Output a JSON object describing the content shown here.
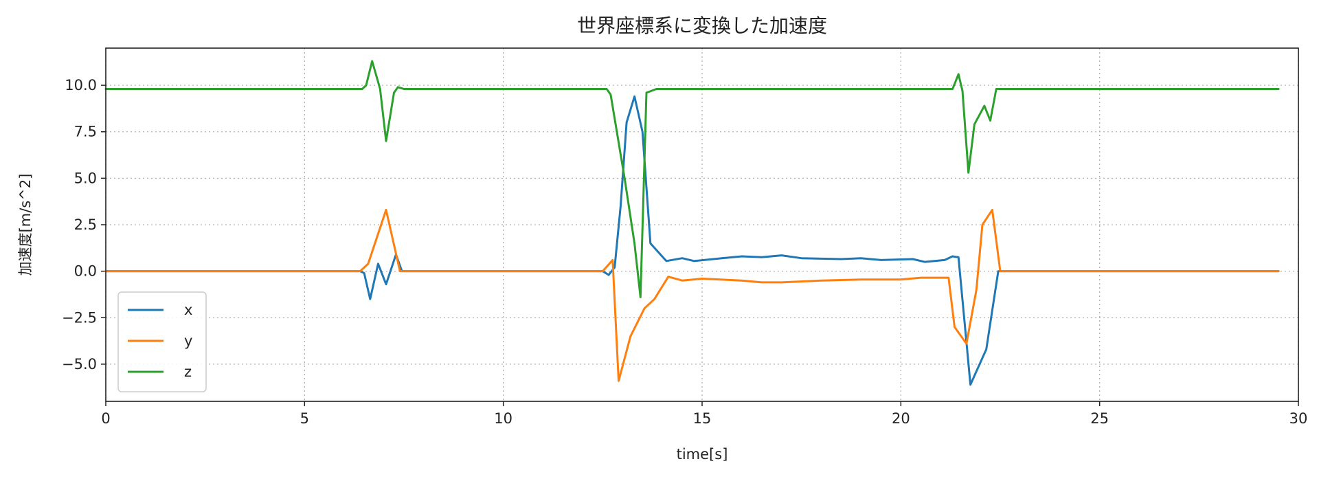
{
  "chart_data": {
    "type": "line",
    "title": "世界座標系に変換した加速度",
    "xlabel": "time[s]",
    "ylabel": "加速度[m/s^2]",
    "xlim": [
      0,
      30
    ],
    "ylim": [
      -7,
      12
    ],
    "xticks": [
      0,
      5,
      10,
      15,
      20,
      25,
      30
    ],
    "xtick_labels": [
      "0",
      "5",
      "10",
      "15",
      "20",
      "25",
      "30"
    ],
    "yticks": [
      -5,
      -2.5,
      0,
      2.5,
      5,
      7.5,
      10
    ],
    "ytick_labels": [
      "−5.0",
      "−2.5",
      "0.0",
      "2.5",
      "5.0",
      "7.5",
      "10.0"
    ],
    "grid": true,
    "legend_position": "lower-left",
    "series": [
      {
        "name": "x",
        "color": "#1f77b4",
        "points": [
          [
            0,
            0
          ],
          [
            6.4,
            0
          ],
          [
            6.5,
            -0.1
          ],
          [
            6.65,
            -1.5
          ],
          [
            6.85,
            0.4
          ],
          [
            7.05,
            -0.7
          ],
          [
            7.3,
            0.9
          ],
          [
            7.45,
            0
          ],
          [
            12.5,
            0
          ],
          [
            12.65,
            -0.2
          ],
          [
            12.8,
            0.2
          ],
          [
            12.95,
            3.5
          ],
          [
            13.1,
            8.0
          ],
          [
            13.3,
            9.4
          ],
          [
            13.5,
            7.5
          ],
          [
            13.7,
            1.5
          ],
          [
            14.1,
            0.55
          ],
          [
            14.5,
            0.7
          ],
          [
            14.8,
            0.55
          ],
          [
            15.5,
            0.7
          ],
          [
            16,
            0.8
          ],
          [
            16.5,
            0.75
          ],
          [
            17,
            0.85
          ],
          [
            17.5,
            0.7
          ],
          [
            18.5,
            0.65
          ],
          [
            19,
            0.7
          ],
          [
            19.5,
            0.6
          ],
          [
            20.3,
            0.65
          ],
          [
            20.6,
            0.5
          ],
          [
            21.1,
            0.6
          ],
          [
            21.3,
            0.8
          ],
          [
            21.45,
            0.75
          ],
          [
            21.75,
            -6.1
          ],
          [
            22.15,
            -4.2
          ],
          [
            22.45,
            0
          ],
          [
            29.5,
            0
          ]
        ]
      },
      {
        "name": "y",
        "color": "#ff7f0e",
        "points": [
          [
            0,
            0
          ],
          [
            6.4,
            0
          ],
          [
            6.6,
            0.4
          ],
          [
            7.05,
            3.3
          ],
          [
            7.4,
            0
          ],
          [
            12.5,
            0
          ],
          [
            12.75,
            0.6
          ],
          [
            12.9,
            -5.9
          ],
          [
            13.2,
            -3.5
          ],
          [
            13.55,
            -2.0
          ],
          [
            13.8,
            -1.5
          ],
          [
            14.15,
            -0.3
          ],
          [
            14.5,
            -0.5
          ],
          [
            15,
            -0.4
          ],
          [
            16,
            -0.5
          ],
          [
            16.5,
            -0.6
          ],
          [
            17,
            -0.6
          ],
          [
            18,
            -0.5
          ],
          [
            19,
            -0.45
          ],
          [
            20,
            -0.45
          ],
          [
            20.5,
            -0.35
          ],
          [
            21.2,
            -0.35
          ],
          [
            21.35,
            -3.0
          ],
          [
            21.65,
            -3.9
          ],
          [
            21.9,
            -1.0
          ],
          [
            22.05,
            2.5
          ],
          [
            22.3,
            3.3
          ],
          [
            22.5,
            0
          ],
          [
            29.5,
            0
          ]
        ]
      },
      {
        "name": "z",
        "color": "#2ca02c",
        "points": [
          [
            0,
            9.8
          ],
          [
            6.45,
            9.8
          ],
          [
            6.55,
            10.0
          ],
          [
            6.7,
            11.3
          ],
          [
            6.9,
            9.8
          ],
          [
            7.05,
            7.0
          ],
          [
            7.25,
            9.6
          ],
          [
            7.35,
            9.9
          ],
          [
            7.5,
            9.8
          ],
          [
            12.6,
            9.8
          ],
          [
            12.7,
            9.5
          ],
          [
            13.05,
            5.0
          ],
          [
            13.3,
            1.5
          ],
          [
            13.45,
            -1.4
          ],
          [
            13.6,
            9.6
          ],
          [
            13.85,
            9.8
          ],
          [
            21.3,
            9.8
          ],
          [
            21.45,
            10.6
          ],
          [
            21.55,
            9.7
          ],
          [
            21.7,
            5.3
          ],
          [
            21.85,
            7.9
          ],
          [
            22.1,
            8.9
          ],
          [
            22.25,
            8.1
          ],
          [
            22.4,
            9.8
          ],
          [
            29.5,
            9.8
          ]
        ]
      }
    ]
  }
}
